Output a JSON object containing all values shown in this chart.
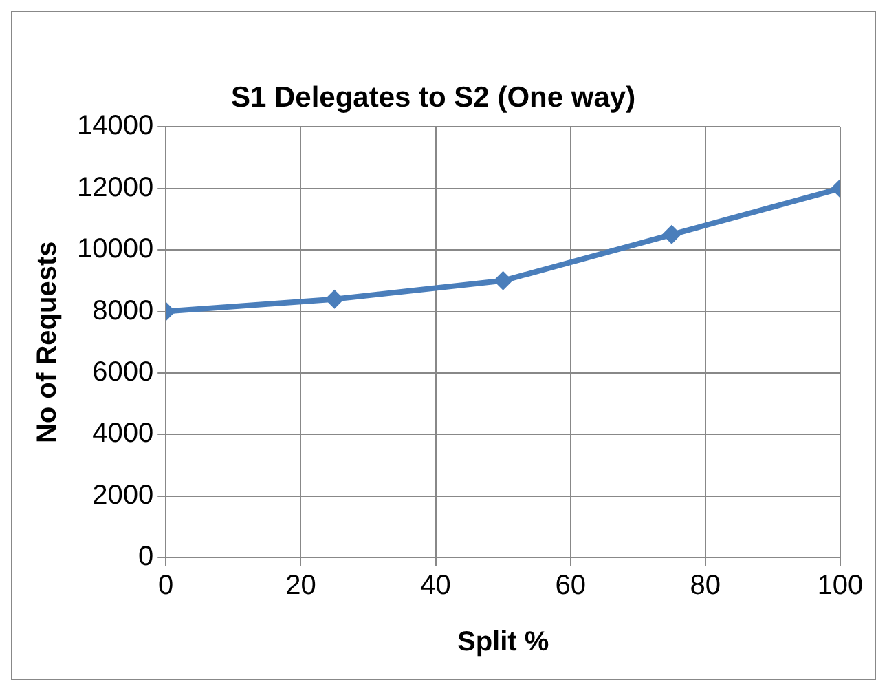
{
  "chart_data": {
    "type": "line",
    "title": "S1 Delegates to S2 (One way)",
    "xlabel": "Split %",
    "ylabel": "No of Requests",
    "x": [
      0,
      25,
      50,
      75,
      100
    ],
    "series": [
      {
        "color": "#4a7ebb",
        "values": [
          8000,
          8400,
          9000,
          10500,
          12000
        ]
      }
    ],
    "xlim": [
      0,
      100
    ],
    "xticks": [
      0,
      20,
      40,
      60,
      80,
      100
    ],
    "ylim": [
      0,
      14000
    ],
    "yticks": [
      0,
      2000,
      4000,
      6000,
      8000,
      10000,
      12000,
      14000
    ],
    "grid": true,
    "legend": false,
    "marker": "diamond",
    "line_style": "solid"
  }
}
